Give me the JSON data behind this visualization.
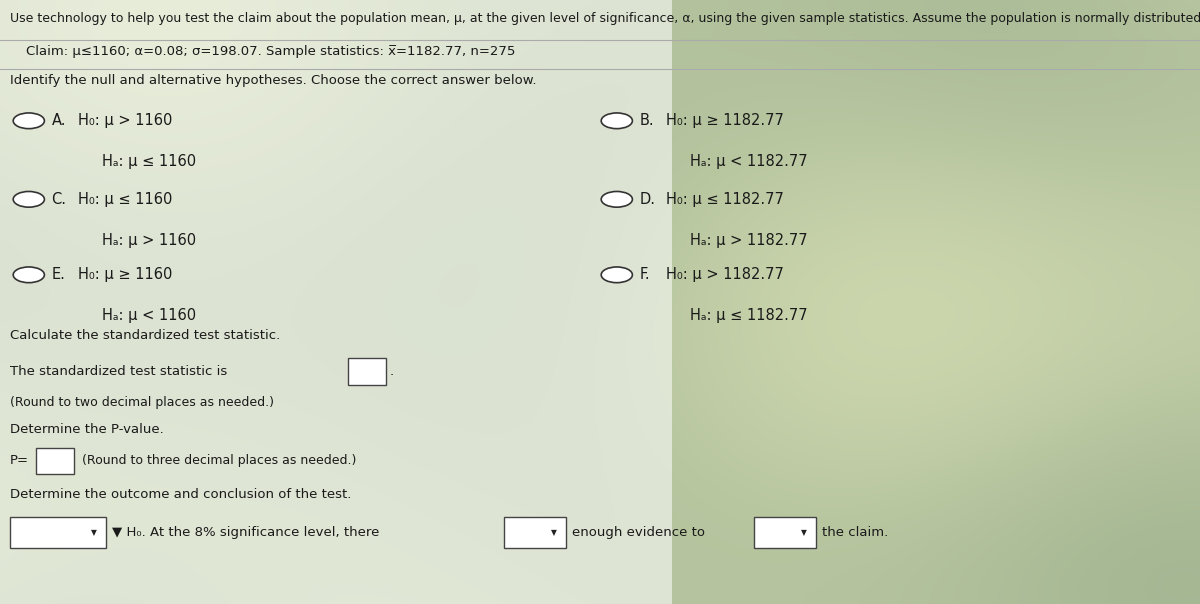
{
  "bg_color_top": "#c8c8b0",
  "panel_bg": "#f0f0e8",
  "text_color": "#1a1a1a",
  "title_line": "Use technology to help you test the claim about the population mean, μ, at the given level of significance, α, using the given sample statistics. Assume the population is normally distributed.",
  "claim_line": "Claim: μ≤1160; α=0.08; σ=198.07. Sample statistics: x̅=1182.77, n=275",
  "identify_line": "Identify the null and alternative hypotheses. Choose the correct answer below.",
  "options": [
    {
      "label": "A.",
      "h0": "H₀: μ > 1160",
      "ha": "Hₐ: μ ≤ 1160",
      "col": 0
    },
    {
      "label": "B.",
      "h0": "H₀: μ ≥ 1182.77",
      "ha": "Hₐ: μ < 1182.77",
      "col": 1
    },
    {
      "label": "C.",
      "h0": "H₀: μ ≤ 1160",
      "ha": "Hₐ: μ > 1160",
      "col": 0
    },
    {
      "label": "D.",
      "h0": "H₀: μ ≤ 1182.77",
      "ha": "Hₐ: μ > 1182.77",
      "col": 1
    },
    {
      "label": "E.",
      "h0": "H₀: μ ≥ 1160",
      "ha": "Hₐ: μ < 1160",
      "col": 0
    },
    {
      "label": "F.",
      "h0": "H₀: μ > 1182.77",
      "ha": "Hₐ: μ ≤ 1182.77",
      "col": 1
    }
  ],
  "calc_line": "Calculate the standardized test statistic.",
  "test_stat_line1": "The standardized test statistic is",
  "test_stat_line2": "(Round to two decimal places as needed.)",
  "pvalue_header": "Determine the P-value.",
  "pvalue_line": "(Round to three decimal places as needed.)",
  "outcome_header": "Determine the outcome and conclusion of the test.",
  "outcome_text1": "H₀. At the 8% significance level, there",
  "outcome_text2": "enough evidence to",
  "outcome_text3": "the claim.",
  "font_size_title": 9.0,
  "font_size_body": 9.5,
  "font_size_options": 10.5
}
